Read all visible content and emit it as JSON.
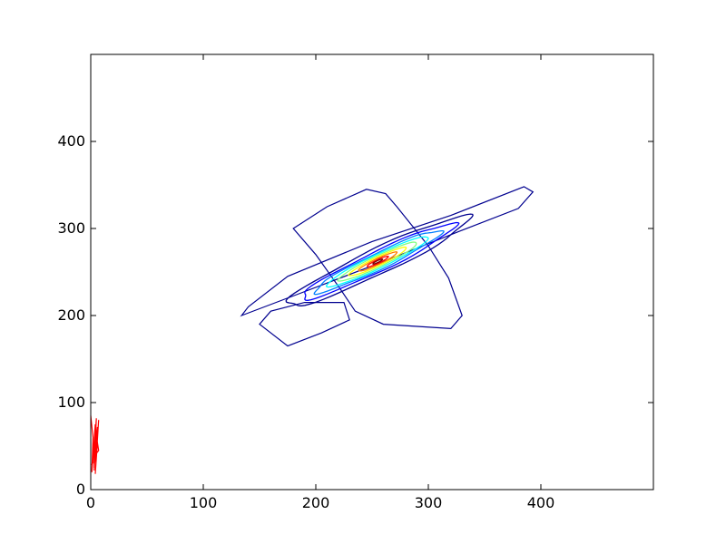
{
  "chart_data": {
    "type": "contour",
    "title": "",
    "xlabel": "",
    "ylabel": "",
    "xlim": [
      0,
      500
    ],
    "ylim": [
      0,
      500
    ],
    "grid": false,
    "x_ticks": [
      "0",
      "100",
      "200",
      "300",
      "400"
    ],
    "y_ticks": [
      "0",
      "100",
      "200",
      "300",
      "400"
    ],
    "colormap": [
      "#00008f",
      "#0000ff",
      "#007fff",
      "#00ffff",
      "#7fff7f",
      "#ffff00",
      "#ff7f00",
      "#ff0000",
      "#7f0000"
    ],
    "contour_center": [
      255,
      262
    ],
    "contour_angle_deg": 32,
    "contour_levels": [
      {
        "level": 1,
        "semi_major": 95,
        "semi_minor": 14,
        "color": "#00008f"
      },
      {
        "level": 2,
        "semi_major": 80,
        "semi_minor": 11,
        "color": "#0000ff"
      },
      {
        "level": 3,
        "semi_major": 66,
        "semi_minor": 9,
        "color": "#007fff"
      },
      {
        "level": 4,
        "semi_major": 53,
        "semi_minor": 7.5,
        "color": "#00ffff"
      },
      {
        "level": 5,
        "semi_major": 41,
        "semi_minor": 6,
        "color": "#7fff7f"
      },
      {
        "level": 6,
        "semi_major": 30,
        "semi_minor": 4.5,
        "color": "#ffff00"
      },
      {
        "level": 7,
        "semi_major": 20,
        "semi_minor": 3.2,
        "color": "#ff7f00"
      },
      {
        "level": 8,
        "semi_major": 11,
        "semi_minor": 2,
        "color": "#ff0000"
      },
      {
        "level": 9,
        "semi_major": 5,
        "semi_minor": 1,
        "color": "#7f0000"
      }
    ],
    "outer_regions": [
      {
        "name": "band-region",
        "color": "#00008f",
        "points": [
          [
            134,
            200
          ],
          [
            185,
            225
          ],
          [
            260,
            262
          ],
          [
            330,
            298
          ],
          [
            380,
            323
          ],
          [
            393,
            342
          ],
          [
            385,
            348
          ],
          [
            320,
            315
          ],
          [
            250,
            285
          ],
          [
            175,
            245
          ],
          [
            140,
            210
          ]
        ]
      },
      {
        "name": "cross-region",
        "color": "#00008f",
        "points": [
          [
            180,
            300
          ],
          [
            210,
            325
          ],
          [
            245,
            345
          ],
          [
            262,
            340
          ],
          [
            272,
            325
          ],
          [
            300,
            280
          ],
          [
            318,
            243
          ],
          [
            330,
            200
          ],
          [
            320,
            185
          ],
          [
            260,
            190
          ],
          [
            235,
            205
          ],
          [
            222,
            230
          ],
          [
            200,
            270
          ]
        ]
      },
      {
        "name": "lower-region",
        "color": "#00008f",
        "points": [
          [
            160,
            205
          ],
          [
            150,
            190
          ],
          [
            175,
            165
          ],
          [
            205,
            180
          ],
          [
            230,
            195
          ],
          [
            225,
            215
          ],
          [
            190,
            215
          ]
        ]
      }
    ],
    "red_series": {
      "name": "",
      "color": "#ff0000",
      "x": [
        0,
        2,
        1,
        4,
        2,
        5,
        3,
        6,
        4,
        7,
        5,
        6,
        3,
        5,
        2,
        4,
        1,
        6,
        3,
        7,
        5,
        4
      ],
      "y": [
        85,
        60,
        20,
        75,
        30,
        82,
        25,
        55,
        18,
        80,
        40,
        70,
        22,
        65,
        35,
        50,
        28,
        72,
        38,
        45,
        62,
        33
      ]
    }
  }
}
